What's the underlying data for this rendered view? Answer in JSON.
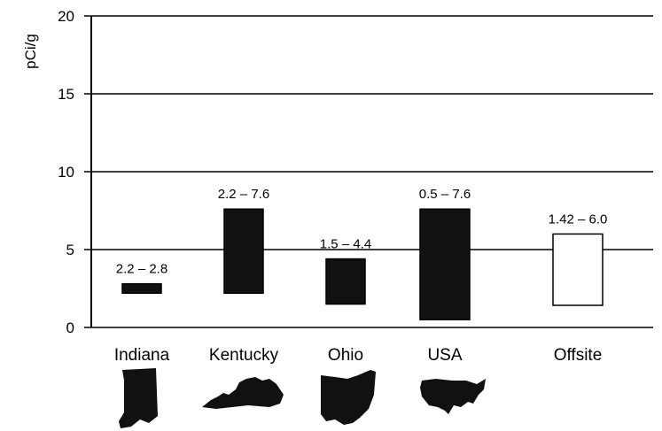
{
  "chart_data": {
    "type": "bar",
    "chart_style": "floating range bars",
    "ylabel": "pCi/g",
    "xlabel": "",
    "ylim": [
      0,
      20
    ],
    "yticks": [
      0,
      5,
      10,
      15,
      20
    ],
    "grid": true,
    "categories": [
      "Indiana",
      "Kentucky",
      "Ohio",
      "USA",
      "Offsite"
    ],
    "ranges": [
      {
        "category": "Indiana",
        "low": 2.2,
        "high": 2.8,
        "label": "2.2 – 2.8",
        "fill": "#111111"
      },
      {
        "category": "Kentucky",
        "low": 2.2,
        "high": 7.6,
        "label": "2.2 – 7.6",
        "fill": "#111111"
      },
      {
        "category": "Ohio",
        "low": 1.5,
        "high": 4.4,
        "label": "1.5 – 4.4",
        "fill": "#111111"
      },
      {
        "category": "USA",
        "low": 0.5,
        "high": 7.6,
        "label": "0.5 – 7.6",
        "fill": "#111111"
      },
      {
        "category": "Offsite",
        "low": 1.42,
        "high": 6.0,
        "label": "1.42 – 6.0",
        "fill": "#ffffff"
      }
    ]
  },
  "maps": [
    {
      "category": "Indiana",
      "icon": "indiana-map-icon"
    },
    {
      "category": "Kentucky",
      "icon": "kentucky-map-icon"
    },
    {
      "category": "Ohio",
      "icon": "ohio-map-icon"
    },
    {
      "category": "USA",
      "icon": "usa-map-icon"
    }
  ]
}
